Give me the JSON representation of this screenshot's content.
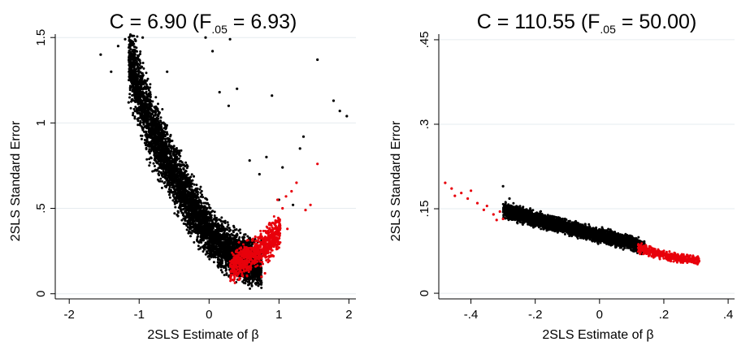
{
  "chart_data": [
    {
      "type": "scatter",
      "title": "C = 6.90",
      "title_parts": {
        "head": "C = 6.90 (F",
        "sub": ".05",
        "tail": " = 6.93)"
      },
      "xlabel": "2SLS Estimate of β",
      "ylabel": "2SLS Standard Error",
      "xlim": [
        -2.2,
        2.1
      ],
      "ylim": [
        -0.03,
        1.52
      ],
      "xticks": [
        -2,
        -1,
        0,
        1,
        2
      ],
      "xtick_labels": [
        "-2",
        "-1",
        "0",
        "1",
        "2"
      ],
      "yticks": [
        0,
        0.5,
        1,
        1.5
      ],
      "ytick_labels": [
        "0",
        ".5",
        "1",
        "1.5"
      ],
      "grid": true,
      "series": [
        {
          "color": "#000000",
          "values": [
            [
              -1.55,
              1.4
            ],
            [
              -1.3,
              1.45
            ],
            [
              -1.2,
              1.49
            ],
            [
              -1.05,
              1.48
            ],
            [
              -0.95,
              1.5
            ],
            [
              -1.15,
              1.12
            ],
            [
              0.05,
              1.42
            ],
            [
              -0.05,
              1.5
            ],
            [
              0.3,
              1.49
            ],
            [
              1.55,
              1.37
            ],
            [
              1.78,
              1.13
            ],
            [
              1.87,
              1.07
            ],
            [
              1.97,
              1.04
            ],
            [
              0.9,
              1.16
            ],
            [
              1.35,
              0.92
            ],
            [
              0.82,
              0.8
            ],
            [
              1.3,
              0.85
            ],
            [
              1.05,
              0.74
            ],
            [
              0.72,
              0.7
            ],
            [
              0.58,
              0.78
            ],
            [
              0.4,
              1.2
            ],
            [
              0.15,
              1.18
            ],
            [
              0.28,
              1.1
            ],
            [
              -0.6,
              1.3
            ],
            [
              -1.4,
              1.3
            ],
            [
              1.2,
              0.52
            ],
            [
              1.0,
              0.55
            ]
          ]
        },
        {
          "color": "#e8000b",
          "values": [
            [
              1.55,
              0.76
            ],
            [
              1.45,
              0.52
            ],
            [
              1.38,
              0.49
            ],
            [
              1.25,
              0.65
            ],
            [
              1.18,
              0.6
            ],
            [
              1.1,
              0.57
            ],
            [
              1.05,
              0.5
            ],
            [
              0.98,
              0.55
            ],
            [
              1.12,
              0.38
            ],
            [
              0.95,
              0.42
            ],
            [
              0.88,
              0.33
            ],
            [
              1.0,
              0.27
            ],
            [
              0.92,
              0.22
            ],
            [
              0.8,
              0.12
            ],
            [
              0.75,
              0.1
            ]
          ]
        }
      ],
      "clouds": [
        {
          "color": "#000000",
          "points": 5200,
          "x_range": [
            -1.15,
            0.75
          ],
          "curve_x": [
            -1.15,
            -0.9,
            -0.6,
            -0.3,
            0.0,
            0.3,
            0.6,
            0.75
          ],
          "curve_y": [
            1.4,
            1.05,
            0.78,
            0.55,
            0.36,
            0.24,
            0.18,
            0.16
          ],
          "spread": 0.085
        },
        {
          "color": "#e8000b",
          "points": 850,
          "x_range": [
            0.3,
            1.02
          ],
          "curve_x": [
            0.3,
            0.5,
            0.7,
            0.85,
            1.02
          ],
          "curve_y": [
            0.15,
            0.2,
            0.25,
            0.3,
            0.37
          ],
          "spread": 0.06
        }
      ]
    },
    {
      "type": "scatter",
      "title": "C = 110.55",
      "title_parts": {
        "head": "C = 110.55 (F",
        "sub": ".05",
        "tail": " = 50.00)"
      },
      "xlabel": "2SLS Estimate of β",
      "ylabel": "2SLS Standard Error",
      "xlim": [
        -0.5,
        0.42
      ],
      "ylim": [
        -0.01,
        0.46
      ],
      "xticks": [
        -0.4,
        -0.2,
        0,
        0.2,
        0.4
      ],
      "xtick_labels": [
        "-.4",
        "-.2",
        "0",
        ".2",
        ".4"
      ],
      "yticks": [
        0,
        0.15,
        0.3,
        0.45
      ],
      "ytick_labels": [
        "0",
        ".15",
        ".3",
        ".45"
      ],
      "grid": true,
      "series": [
        {
          "color": "#e8000b",
          "values": [
            [
              -0.48,
              0.196
            ],
            [
              -0.46,
              0.186
            ],
            [
              -0.45,
              0.173
            ],
            [
              -0.43,
              0.178
            ],
            [
              -0.41,
              0.168
            ],
            [
              -0.4,
              0.182
            ],
            [
              -0.38,
              0.16
            ],
            [
              -0.36,
              0.148
            ],
            [
              -0.35,
              0.155
            ],
            [
              -0.33,
              0.14
            ],
            [
              -0.32,
              0.13
            ],
            [
              -0.31,
              0.145
            ],
            [
              -0.3,
              0.132
            ]
          ]
        },
        {
          "color": "#000000",
          "values": [
            [
              -0.3,
              0.19
            ],
            [
              -0.28,
              0.168
            ]
          ]
        }
      ],
      "clouds": [
        {
          "color": "#000000",
          "points": 4200,
          "x_range": [
            -0.3,
            0.14
          ],
          "curve_x": [
            -0.3,
            -0.2,
            -0.1,
            0.0,
            0.1,
            0.14
          ],
          "curve_y": [
            0.148,
            0.132,
            0.117,
            0.103,
            0.088,
            0.082
          ],
          "spread": 0.007
        },
        {
          "color": "#e8000b",
          "points": 480,
          "x_range": [
            0.12,
            0.31
          ],
          "curve_x": [
            0.12,
            0.2,
            0.25,
            0.31
          ],
          "curve_y": [
            0.08,
            0.068,
            0.062,
            0.057
          ],
          "spread": 0.005
        }
      ]
    }
  ]
}
